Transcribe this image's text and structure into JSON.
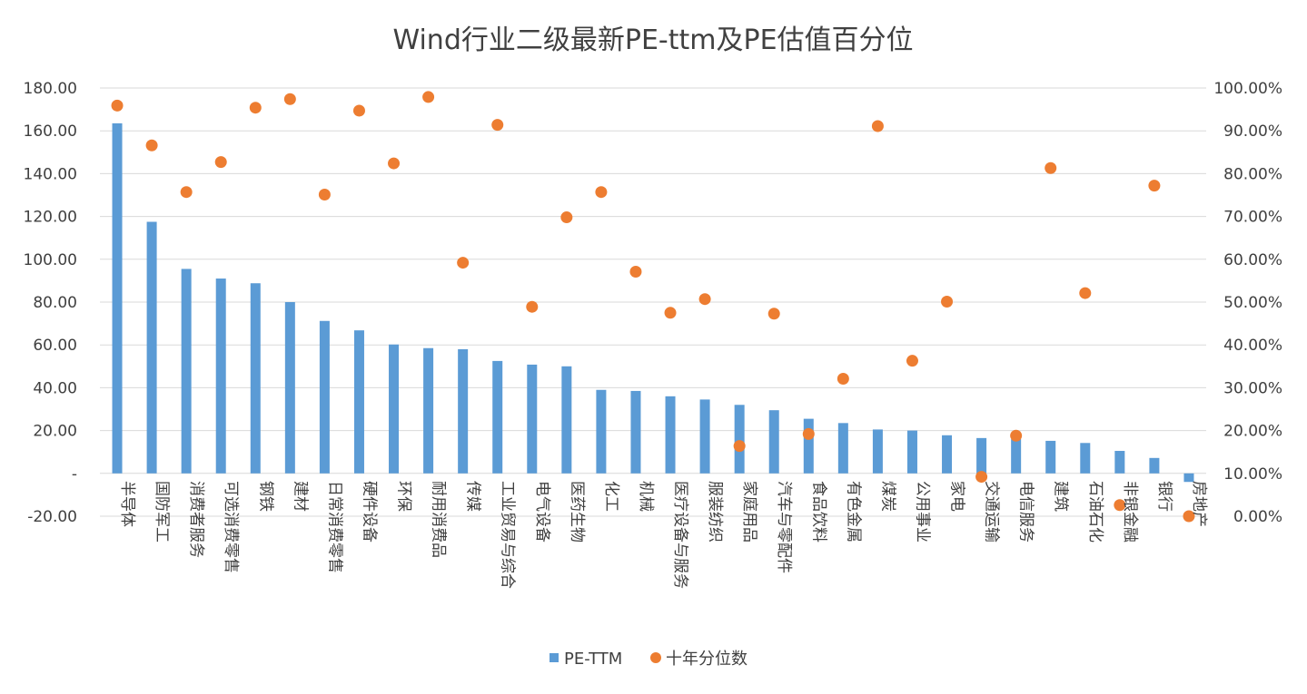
{
  "chart_data": {
    "type": "bar",
    "title": "Wind行业二级最新PE-ttm及PE估值百分位",
    "categories": [
      "半导体",
      "国防军工",
      "消费者服务",
      "可选消费零售",
      "钢铁",
      "建材",
      "日常消费零售",
      "硬件设备",
      "环保",
      "耐用消费品",
      "传媒",
      "工业贸易与综合",
      "电气设备",
      "医药生物",
      "化工",
      "机械",
      "医疗设备与服务",
      "服装纺织",
      "家庭用品",
      "汽车与零配件",
      "食品饮料",
      "有色金属",
      "煤炭",
      "公用事业",
      "家电",
      "交通运输",
      "电信服务",
      "建筑",
      "石油石化",
      "非银金融",
      "银行",
      "房地产"
    ],
    "series": [
      {
        "name": "PE-TTM",
        "type": "bar",
        "axis": "left",
        "color": "#5B9BD5",
        "values": [
          163.5,
          117.5,
          95.5,
          91.0,
          88.8,
          80.0,
          71.2,
          66.8,
          60.2,
          58.5,
          58.0,
          52.5,
          50.8,
          50.0,
          39.0,
          38.5,
          36.0,
          34.5,
          32.0,
          29.5,
          25.5,
          23.5,
          20.5,
          20.0,
          17.8,
          16.5,
          16.0,
          15.2,
          14.2,
          10.5,
          7.2,
          -4.0
        ]
      },
      {
        "name": "十年分位数",
        "type": "scatter",
        "axis": "right",
        "color": "#ED7D31",
        "values": [
          95.9,
          86.6,
          75.7,
          82.7,
          95.4,
          97.4,
          75.1,
          94.7,
          82.4,
          97.9,
          59.2,
          91.4,
          48.9,
          69.8,
          75.7,
          57.1,
          47.5,
          50.7,
          16.4,
          47.3,
          19.2,
          32.1,
          91.1,
          36.3,
          50.1,
          9.2,
          18.8,
          81.3,
          52.1,
          2.6,
          77.2,
          0.0
        ]
      }
    ],
    "y_left": {
      "ylim": [
        -20,
        180
      ],
      "ticks": [
        -20,
        0,
        20,
        40,
        60,
        80,
        100,
        120,
        140,
        160,
        180
      ],
      "tick_labels": [
        "-20.00",
        "-",
        "20.00",
        "40.00",
        "60.00",
        "80.00",
        "100.00",
        "120.00",
        "140.00",
        "160.00",
        "180.00"
      ]
    },
    "y_right": {
      "ylim": [
        0,
        100
      ],
      "ticks": [
        0,
        10,
        20,
        30,
        40,
        50,
        60,
        70,
        80,
        90,
        100
      ],
      "tick_labels": [
        "0.00%",
        "10.00%",
        "20.00%",
        "30.00%",
        "40.00%",
        "50.00%",
        "60.00%",
        "70.00%",
        "80.00%",
        "90.00%",
        "100.00%"
      ]
    },
    "grid": true,
    "legend": {
      "position": "bottom",
      "entries": [
        "PE-TTM",
        "十年分位数"
      ]
    }
  }
}
